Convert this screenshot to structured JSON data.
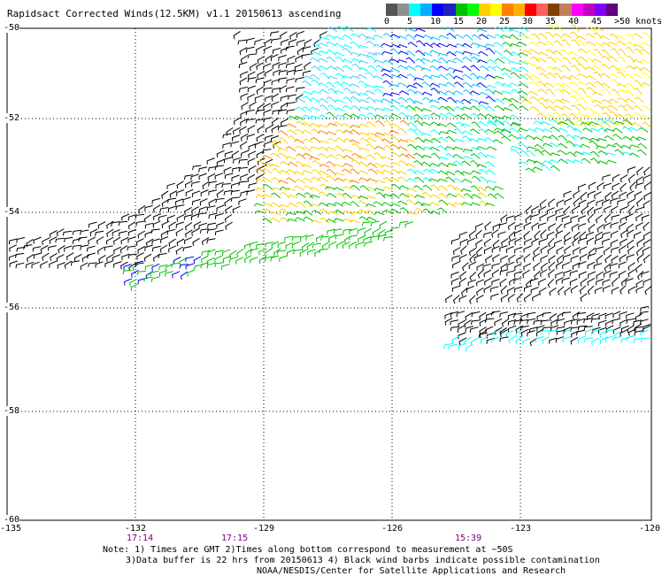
{
  "title": "Rapidsact Corrected Winds(12.5KM) v1.1 20150613 ascending",
  "colorbar": {
    "colors": [
      "#555555",
      "#909090",
      "#00ffff",
      "#00b0ff",
      "#0000ff",
      "#2020c0",
      "#00c000",
      "#00ff00",
      "#ffd000",
      "#ffff00",
      "#ff8000",
      "#ffb000",
      "#ff0000",
      "#ff6060",
      "#804000",
      "#c08060",
      "#ff00ff",
      "#c000c0",
      "#8000ff",
      "#600080"
    ],
    "labels": [
      "0",
      "5",
      "10",
      "15",
      "20",
      "25",
      "30",
      "35",
      "40",
      "45",
      ">50 knots"
    ]
  },
  "lat_labels": [
    "-50",
    "-52",
    "-54",
    "-56",
    "-58",
    "-60"
  ],
  "lon_labels": [
    "-135",
    "-132",
    "-129",
    "-126",
    "-123",
    "-120"
  ],
  "times": [
    "17:14",
    "17:15",
    "15:39"
  ],
  "notes": {
    "line1": "Note: 1) Times are GMT 2)Times along bottom correspond to measurement at ~50S",
    "line2": "3)Data buffer is 22 hrs from 20150613 4) Black wind barbs indicate possible contamination",
    "line3": "NOAA/NESDIS/Center for Satellite Applications and Research"
  }
}
